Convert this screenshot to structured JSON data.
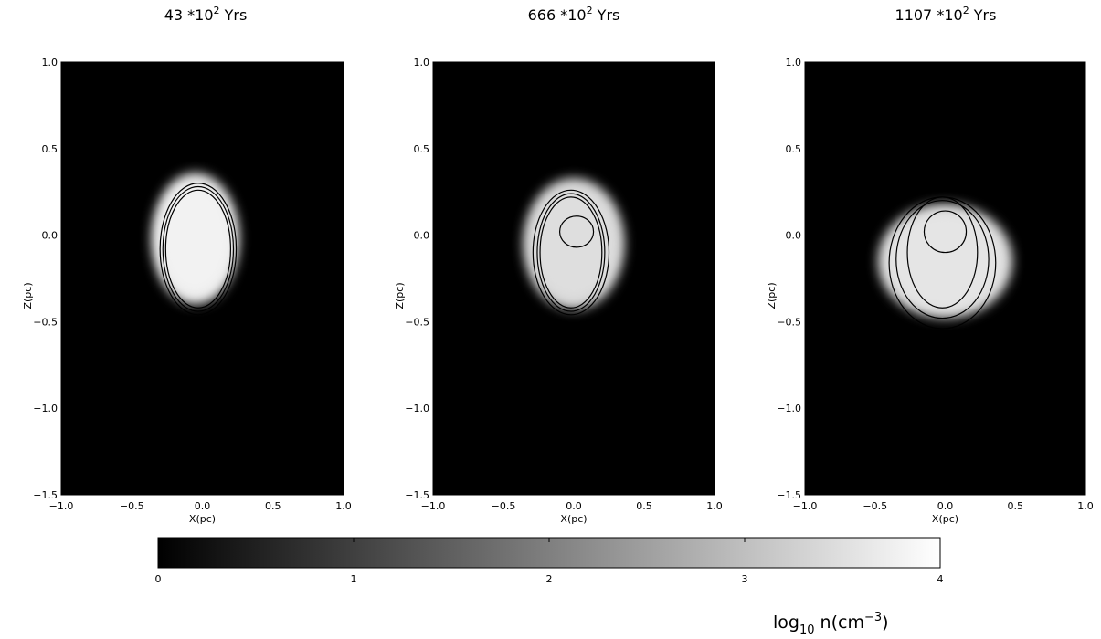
{
  "chart_data": [
    {
      "type": "heatmap",
      "title": "43 *10² Yrs",
      "time_value": 43,
      "time_multiplier": "*10²",
      "time_unit": "Yrs",
      "xlabel": "X(pc)",
      "ylabel": "Z(pc)",
      "xlim": [
        -1.0,
        1.0
      ],
      "ylim": [
        -1.5,
        1.0
      ],
      "xticks": [
        "-1.0",
        "-0.5",
        "0.0",
        "0.5",
        "1.0"
      ],
      "yticks": [
        "-1.5",
        "-1.0",
        "-0.5",
        "0.0",
        "0.5",
        "1.0"
      ],
      "cloud": {
        "cx": -0.05,
        "cz": -0.02,
        "rx": 0.31,
        "rz": 0.38,
        "core_log_n": 3.6
      },
      "contours": [
        {
          "cx": -0.03,
          "cz": -0.08,
          "rx": 0.23,
          "rz": 0.34
        },
        {
          "cx": -0.03,
          "cz": -0.08,
          "rx": 0.25,
          "rz": 0.36
        },
        {
          "cx": -0.03,
          "cz": -0.08,
          "rx": 0.27,
          "rz": 0.38
        }
      ],
      "grid": false
    },
    {
      "type": "heatmap",
      "title": "666 *10² Yrs",
      "time_value": 666,
      "time_multiplier": "*10²",
      "time_unit": "Yrs",
      "xlabel": "X(pc)",
      "ylabel": "Z(pc)",
      "xlim": [
        -1.0,
        1.0
      ],
      "ylim": [
        -1.5,
        1.0
      ],
      "xticks": [
        "-1.0",
        "-0.5",
        "0.0",
        "0.5",
        "1.0"
      ],
      "yticks": [
        "-1.5",
        "-1.0",
        "-0.5",
        "0.0",
        "0.5",
        "1.0"
      ],
      "cloud": {
        "cx": 0.0,
        "cz": -0.05,
        "rx": 0.36,
        "rz": 0.38,
        "core_log_n": 3.3
      },
      "contours": [
        {
          "cx": 0.02,
          "cz": 0.02,
          "rx": 0.12,
          "rz": 0.09
        },
        {
          "cx": -0.02,
          "cz": -0.1,
          "rx": 0.22,
          "rz": 0.32
        },
        {
          "cx": -0.02,
          "cz": -0.1,
          "rx": 0.24,
          "rz": 0.34
        },
        {
          "cx": -0.02,
          "cz": -0.1,
          "rx": 0.27,
          "rz": 0.36
        }
      ],
      "grid": false
    },
    {
      "type": "heatmap",
      "title": "1107 *10² Yrs",
      "time_value": 1107,
      "time_multiplier": "*10²",
      "time_unit": "Yrs",
      "xlabel": "X(pc)",
      "ylabel": "Z(pc)",
      "xlim": [
        -1.0,
        1.0
      ],
      "ylim": [
        -1.5,
        1.0
      ],
      "xticks": [
        "-1.0",
        "-0.5",
        "0.0",
        "0.5",
        "1.0"
      ],
      "yticks": [
        "-1.5",
        "-1.0",
        "-0.5",
        "0.0",
        "0.5",
        "1.0"
      ],
      "cloud": {
        "cx": 0.0,
        "cz": -0.15,
        "rx": 0.48,
        "rz": 0.33,
        "core_log_n": 3.4
      },
      "contours": [
        {
          "cx": 0.0,
          "cz": 0.02,
          "rx": 0.15,
          "rz": 0.12
        },
        {
          "cx": -0.02,
          "cz": -0.1,
          "rx": 0.25,
          "rz": 0.32
        },
        {
          "cx": -0.02,
          "cz": -0.14,
          "rx": 0.33,
          "rz": 0.34
        },
        {
          "cx": -0.02,
          "cz": -0.16,
          "rx": 0.38,
          "rz": 0.38
        }
      ],
      "grid": false
    }
  ],
  "colorbar": {
    "min": 0,
    "max": 4,
    "ticks": [
      "0",
      "1",
      "2",
      "3",
      "4"
    ],
    "label_main": "log",
    "label_sub": "10",
    "label_rest": " n(cm",
    "label_sup": "−3",
    "label_close": ")",
    "colors": [
      "#000000",
      "#ffffff"
    ]
  }
}
